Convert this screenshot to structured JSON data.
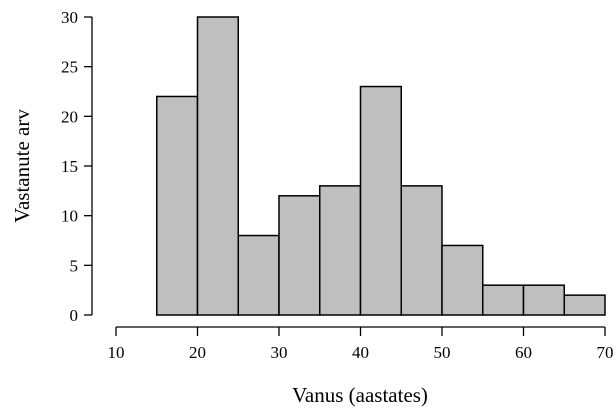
{
  "chart_data": {
    "type": "bar",
    "subtype": "histogram",
    "title": "",
    "xlabel": "Vanus (aastates)",
    "ylabel": "Vastanute arv",
    "bins": [
      {
        "start": 15,
        "end": 20,
        "value": 22
      },
      {
        "start": 20,
        "end": 25,
        "value": 30
      },
      {
        "start": 25,
        "end": 30,
        "value": 8
      },
      {
        "start": 30,
        "end": 35,
        "value": 12
      },
      {
        "start": 35,
        "end": 40,
        "value": 13
      },
      {
        "start": 40,
        "end": 45,
        "value": 23
      },
      {
        "start": 45,
        "end": 50,
        "value": 13
      },
      {
        "start": 50,
        "end": 55,
        "value": 7
      },
      {
        "start": 55,
        "end": 60,
        "value": 3
      },
      {
        "start": 60,
        "end": 65,
        "value": 3
      },
      {
        "start": 65,
        "end": 70,
        "value": 2
      }
    ],
    "xlim": [
      10,
      70
    ],
    "ylim": [
      0,
      30
    ],
    "x_ticks": [
      "10",
      "20",
      "30",
      "40",
      "50",
      "60",
      "70"
    ],
    "y_ticks": [
      "0",
      "5",
      "10",
      "15",
      "20",
      "25",
      "30"
    ],
    "grid": false,
    "bar_color": "#bfbfbf",
    "edge_color": "#000000"
  }
}
